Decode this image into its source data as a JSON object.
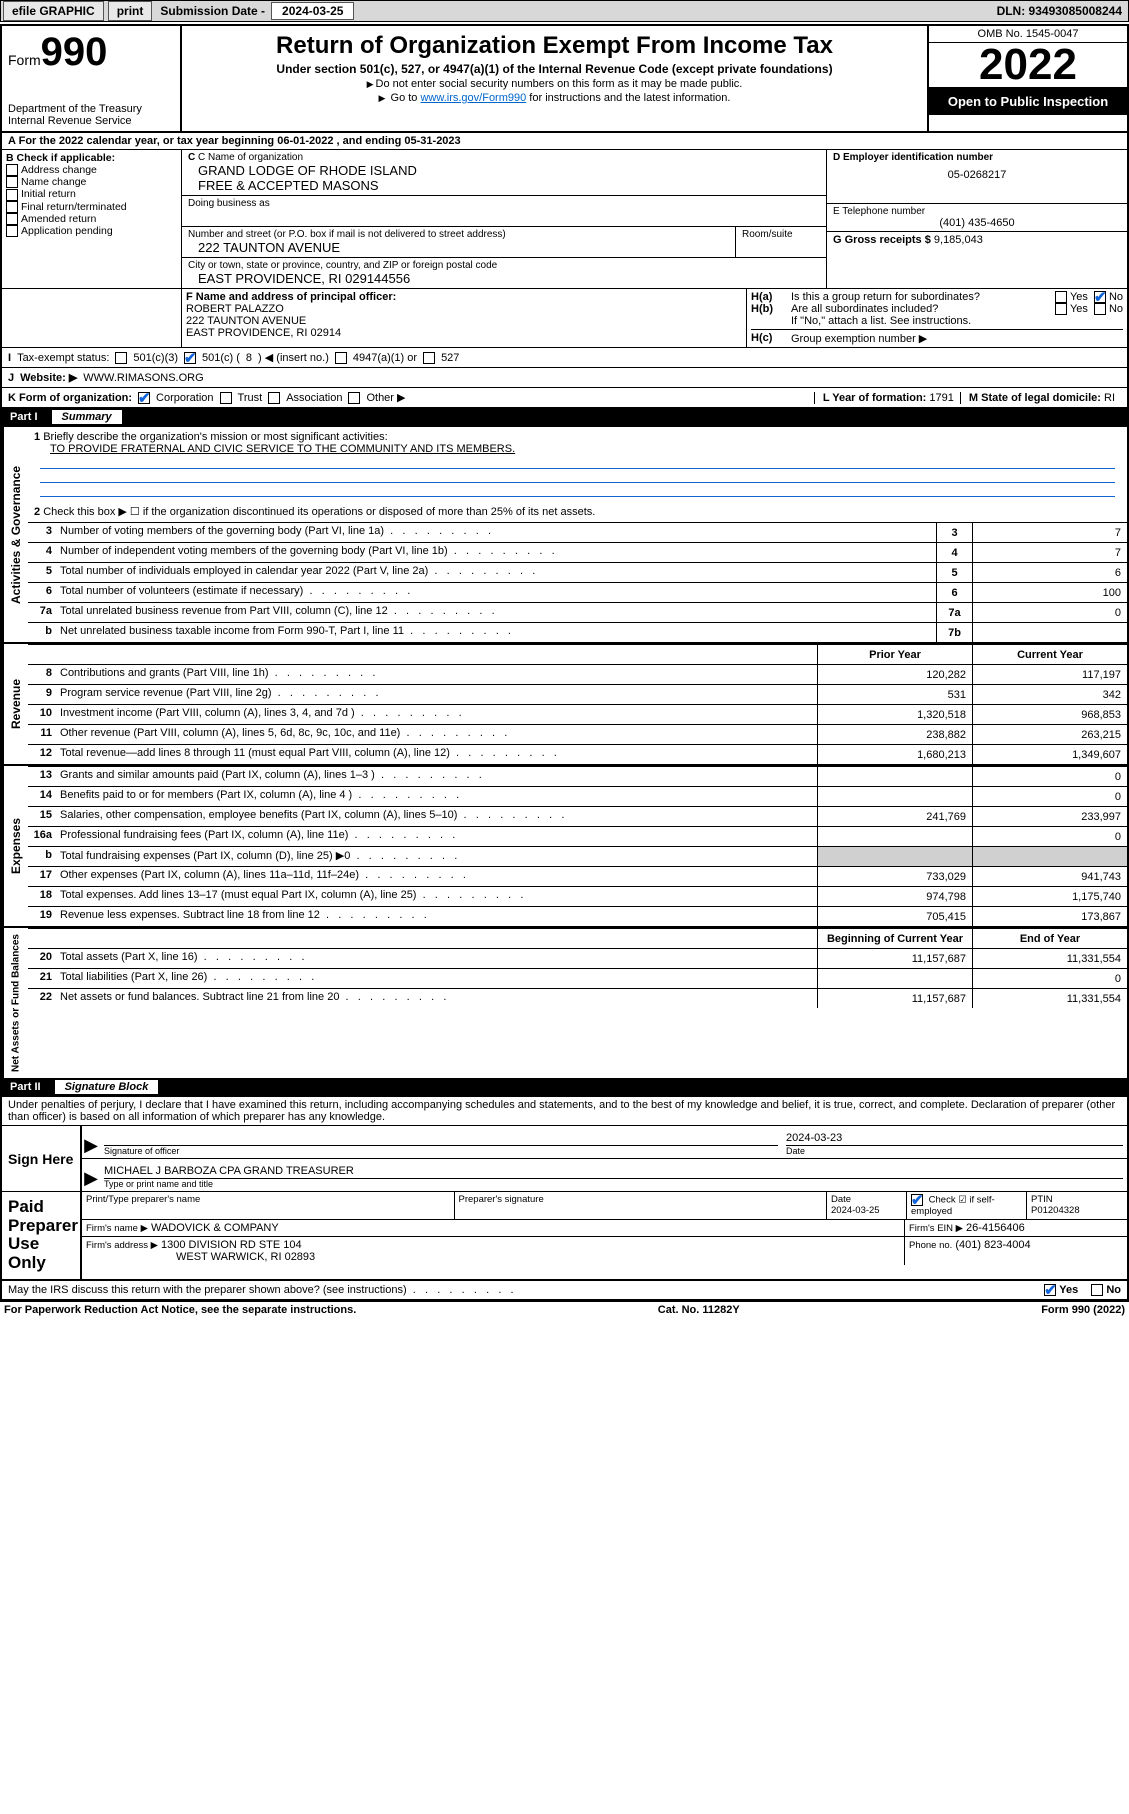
{
  "topbar": {
    "efile": "efile GRAPHIC",
    "print": "print",
    "sub_label": "Submission Date - ",
    "sub_date": "2024-03-25",
    "dln": "DLN: 93493085008244"
  },
  "header": {
    "form_word": "Form",
    "form_num": "990",
    "dept": "Department of the Treasury",
    "irs": "Internal Revenue Service",
    "title": "Return of Organization Exempt From Income Tax",
    "sub": "Under section 501(c), 527, or 4947(a)(1) of the Internal Revenue Code (except private foundations)",
    "note1": "Do not enter social security numbers on this form as it may be made public.",
    "note2_a": "Go to ",
    "note2_link": "www.irs.gov/Form990",
    "note2_b": " for instructions and the latest information.",
    "omb": "OMB No. 1545-0047",
    "year": "2022",
    "inspect": "Open to Public Inspection"
  },
  "A": {
    "text_a": "For the 2022 calendar year, or tax year beginning ",
    "begin": "06-01-2022",
    "text_b": ", and ending ",
    "end": "05-31-2023"
  },
  "B": {
    "label": "B Check if applicable:",
    "items": [
      "Address change",
      "Name change",
      "Initial return",
      "Final return/terminated",
      "Amended return",
      "Application pending"
    ]
  },
  "C": {
    "name_lab": "C Name of organization",
    "name1": "GRAND LODGE OF RHODE ISLAND",
    "name2": "FREE & ACCEPTED MASONS",
    "dba_lab": "Doing business as",
    "addr_lab": "Number and street (or P.O. box if mail is not delivered to street address)",
    "room_lab": "Room/suite",
    "addr": "222 TAUNTON AVENUE",
    "city_lab": "City or town, state or province, country, and ZIP or foreign postal code",
    "city": "EAST PROVIDENCE, RI  029144556"
  },
  "D": {
    "lab": "D Employer identification number",
    "val": "05-0268217"
  },
  "E": {
    "lab": "E Telephone number",
    "val": "(401) 435-4650"
  },
  "G": {
    "lab": "G Gross receipts $",
    "val": "9,185,043"
  },
  "F": {
    "lab": "F Name and address of principal officer:",
    "name": "ROBERT PALAZZO",
    "addr": "222 TAUNTON AVENUE",
    "city": "EAST PROVIDENCE, RI  02914"
  },
  "H": {
    "a": "Is this a group return for subordinates?",
    "b": "Are all subordinates included?",
    "note": "If \"No,\" attach a list. See instructions.",
    "c": "Group exemption number ▶",
    "yes": "Yes",
    "no": "No"
  },
  "I": {
    "lab": "Tax-exempt status:",
    "o1": "501(c)(3)",
    "o2a": "501(c) (",
    "o2n": "8",
    "o2b": ") ◀ (insert no.)",
    "o3": "4947(a)(1) or",
    "o4": "527"
  },
  "J": {
    "lab": "Website: ▶",
    "val": "WWW.RIMASONS.ORG"
  },
  "K": {
    "lab": "K Form of organization:",
    "o": [
      "Corporation",
      "Trust",
      "Association",
      "Other ▶"
    ]
  },
  "L": {
    "lab": "L Year of formation:",
    "val": "1791"
  },
  "M": {
    "lab": "M State of legal domicile:",
    "val": "RI"
  },
  "part1": {
    "part": "Part I",
    "title": "Summary"
  },
  "tabs": {
    "gov": "Activities & Governance",
    "rev": "Revenue",
    "exp": "Expenses",
    "net": "Net Assets or Fund Balances"
  },
  "summary": {
    "l1_lab": "Briefly describe the organization's mission or most significant activities:",
    "l1_val": "TO PROVIDE FRATERNAL AND CIVIC SERVICE TO THE COMMUNITY AND ITS MEMBERS.",
    "l2": "Check this box ▶ ☐  if the organization discontinued its operations or disposed of more than 25% of its net assets.",
    "rows_gov": [
      {
        "n": "3",
        "d": "Number of voting members of the governing body (Part VI, line 1a)",
        "box": "3",
        "v": "7"
      },
      {
        "n": "4",
        "d": "Number of independent voting members of the governing body (Part VI, line 1b)",
        "box": "4",
        "v": "7"
      },
      {
        "n": "5",
        "d": "Total number of individuals employed in calendar year 2022 (Part V, line 2a)",
        "box": "5",
        "v": "6"
      },
      {
        "n": "6",
        "d": "Total number of volunteers (estimate if necessary)",
        "box": "6",
        "v": "100"
      },
      {
        "n": "7a",
        "d": "Total unrelated business revenue from Part VIII, column (C), line 12",
        "box": "7a",
        "v": "0"
      },
      {
        "n": "b",
        "d": "Net unrelated business taxable income from Form 990-T, Part I, line 11",
        "box": "7b",
        "v": ""
      }
    ],
    "col_h1": "Prior Year",
    "col_h2": "Current Year",
    "rows_rev": [
      {
        "n": "8",
        "d": "Contributions and grants (Part VIII, line 1h)",
        "v1": "120,282",
        "v2": "117,197"
      },
      {
        "n": "9",
        "d": "Program service revenue (Part VIII, line 2g)",
        "v1": "531",
        "v2": "342"
      },
      {
        "n": "10",
        "d": "Investment income (Part VIII, column (A), lines 3, 4, and 7d )",
        "v1": "1,320,518",
        "v2": "968,853"
      },
      {
        "n": "11",
        "d": "Other revenue (Part VIII, column (A), lines 5, 6d, 8c, 9c, 10c, and 11e)",
        "v1": "238,882",
        "v2": "263,215"
      },
      {
        "n": "12",
        "d": "Total revenue—add lines 8 through 11 (must equal Part VIII, column (A), line 12)",
        "v1": "1,680,213",
        "v2": "1,349,607"
      }
    ],
    "rows_exp": [
      {
        "n": "13",
        "d": "Grants and similar amounts paid (Part IX, column (A), lines 1–3 )",
        "v1": "",
        "v2": "0"
      },
      {
        "n": "14",
        "d": "Benefits paid to or for members (Part IX, column (A), line 4 )",
        "v1": "",
        "v2": "0"
      },
      {
        "n": "15",
        "d": "Salaries, other compensation, employee benefits (Part IX, column (A), lines 5–10)",
        "v1": "241,769",
        "v2": "233,997"
      },
      {
        "n": "16a",
        "d": "Professional fundraising fees (Part IX, column (A), line 11e)",
        "v1": "",
        "v2": "0"
      },
      {
        "n": "b",
        "d": "Total fundraising expenses (Part IX, column (D), line 25) ▶0",
        "v1": "GREY",
        "v2": "GREY"
      },
      {
        "n": "17",
        "d": "Other expenses (Part IX, column (A), lines 11a–11d, 11f–24e)",
        "v1": "733,029",
        "v2": "941,743"
      },
      {
        "n": "18",
        "d": "Total expenses. Add lines 13–17 (must equal Part IX, column (A), line 25)",
        "v1": "974,798",
        "v2": "1,175,740"
      },
      {
        "n": "19",
        "d": "Revenue less expenses. Subtract line 18 from line 12",
        "v1": "705,415",
        "v2": "173,867"
      }
    ],
    "net_h1": "Beginning of Current Year",
    "net_h2": "End of Year",
    "rows_net": [
      {
        "n": "20",
        "d": "Total assets (Part X, line 16)",
        "v1": "11,157,687",
        "v2": "11,331,554"
      },
      {
        "n": "21",
        "d": "Total liabilities (Part X, line 26)",
        "v1": "",
        "v2": "0"
      },
      {
        "n": "22",
        "d": "Net assets or fund balances. Subtract line 21 from line 20",
        "v1": "11,157,687",
        "v2": "11,331,554"
      }
    ]
  },
  "part2": {
    "part": "Part II",
    "title": "Signature Block"
  },
  "perjury": "Under penalties of perjury, I declare that I have examined this return, including accompanying schedules and statements, and to the best of my knowledge and belief, it is true, correct, and complete. Declaration of preparer (other than officer) is based on all information of which preparer has any knowledge.",
  "sign": {
    "here": "Sign Here",
    "sig_lab": "Signature of officer",
    "date_lab": "Date",
    "date": "2024-03-23",
    "name": "MICHAEL J BARBOZA CPA  GRAND TREASURER",
    "name_lab": "Type or print name and title"
  },
  "paid": {
    "title": "Paid Preparer Use Only",
    "h": [
      "Print/Type preparer's name",
      "Preparer's signature",
      "Date",
      "",
      "PTIN"
    ],
    "date": "2024-03-25",
    "check_lab": "Check ☑ if self-employed",
    "ptin": "P01204328",
    "firm_name_lab": "Firm's name   ▶",
    "firm_name": "WADOVICK & COMPANY",
    "firm_ein_lab": "Firm's EIN ▶",
    "firm_ein": "26-4156406",
    "firm_addr_lab": "Firm's address ▶",
    "firm_addr1": "1300 DIVISION RD STE 104",
    "firm_addr2": "WEST WARWICK, RI  02893",
    "phone_lab": "Phone no.",
    "phone": "(401) 823-4004"
  },
  "discuss": {
    "q": "May the IRS discuss this return with the preparer shown above? (see instructions)",
    "yes": "Yes",
    "no": "No"
  },
  "footer": {
    "l": "For Paperwork Reduction Act Notice, see the separate instructions.",
    "m": "Cat. No. 11282Y",
    "r": "Form 990 (2022)"
  },
  "colors": {
    "blue": "#1163d8"
  }
}
